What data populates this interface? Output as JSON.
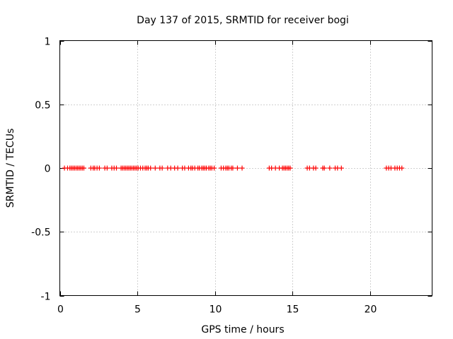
{
  "chart_data": {
    "type": "scatter",
    "title": "Day 137 of 2015, SRMTID for receiver bogi",
    "xlabel": "GPS time / hours",
    "ylabel": "SRMTID / TECUs",
    "xlim": [
      0,
      24
    ],
    "ylim": [
      -1,
      1
    ],
    "grid": true,
    "xticks": [
      0,
      5,
      10,
      15,
      20
    ],
    "xtick_labels": [
      "0",
      "5",
      "10",
      "15",
      "20"
    ],
    "yticks": [
      1,
      0.5,
      0,
      -0.5,
      -1
    ],
    "ytick_labels": [
      "1",
      "0.5",
      "0",
      "-0.5",
      "-1"
    ],
    "series": [
      {
        "name": "SRMTID",
        "color": "#ff0000",
        "marker": "+",
        "x": [
          0.3,
          0.5,
          0.65,
          0.75,
          0.85,
          0.95,
          1.05,
          1.15,
          1.25,
          1.35,
          1.45,
          1.55,
          2.0,
          2.15,
          2.25,
          2.4,
          2.55,
          2.9,
          3.05,
          3.35,
          3.5,
          3.65,
          3.95,
          4.05,
          4.15,
          4.25,
          4.35,
          4.45,
          4.55,
          4.65,
          4.75,
          4.85,
          4.95,
          5.05,
          5.2,
          5.35,
          5.5,
          5.6,
          5.7,
          5.85,
          6.15,
          6.45,
          6.6,
          6.95,
          7.15,
          7.4,
          7.6,
          7.9,
          8.05,
          8.3,
          8.45,
          8.55,
          8.7,
          8.9,
          9.0,
          9.15,
          9.25,
          9.35,
          9.45,
          9.6,
          9.7,
          9.8,
          9.95,
          10.4,
          10.55,
          10.7,
          10.8,
          10.9,
          11.05,
          11.15,
          11.45,
          11.75,
          13.5,
          13.65,
          13.9,
          14.15,
          14.35,
          14.45,
          14.55,
          14.65,
          14.75,
          14.85,
          15.95,
          16.1,
          16.35,
          16.5,
          16.95,
          17.05,
          17.4,
          17.75,
          17.9,
          18.15,
          21.05,
          21.2,
          21.35,
          21.6,
          21.75,
          21.9,
          22.05
        ],
        "y": [
          0,
          0,
          0,
          0,
          0,
          0,
          0,
          0,
          0,
          0,
          0,
          0,
          0,
          0,
          0,
          0,
          0,
          0,
          0,
          0,
          0,
          0,
          0,
          0,
          0,
          0,
          0,
          0,
          0,
          0,
          0,
          0,
          0,
          0,
          0,
          0,
          0,
          0,
          0,
          0,
          0,
          0,
          0,
          0,
          0,
          0,
          0,
          0,
          0,
          0,
          0,
          0,
          0,
          0,
          0,
          0,
          0,
          0,
          0,
          0,
          0,
          0,
          0,
          0,
          0,
          0,
          0,
          0,
          0,
          0,
          0,
          0,
          0,
          0,
          0,
          0,
          0,
          0,
          0,
          0,
          0,
          0,
          0,
          0,
          0,
          0,
          0,
          0,
          0,
          0,
          0,
          0,
          0,
          0,
          0,
          0,
          0,
          0,
          0
        ]
      }
    ]
  }
}
